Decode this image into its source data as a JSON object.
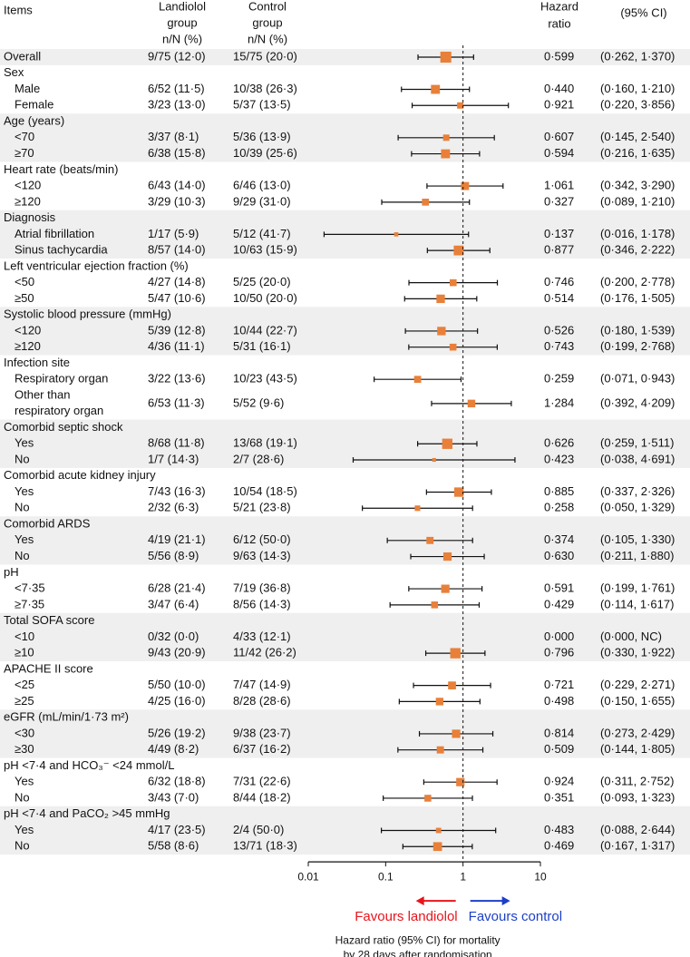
{
  "chart_data": {
    "type": "forest",
    "headers": {
      "items": "Items",
      "landiolol": [
        "Landiolol",
        "group",
        "n/N (%)"
      ],
      "control": [
        "Control",
        "group",
        "n/N (%)"
      ],
      "hr": [
        "Hazard",
        "ratio"
      ],
      "ci": "(95% CI)"
    },
    "overall": {
      "label": "Overall",
      "landiolol": "9/75 (12·0)",
      "control": "15/75 (20·0)",
      "hr": 0.599,
      "hr_label": "0·599",
      "ci": [
        0.262,
        1.37
      ],
      "ci_label": "(0·262, 1·370)"
    },
    "subgroups": [
      {
        "label": "Sex",
        "rows": [
          {
            "label": "Male",
            "landiolol": "6/52 (11·5)",
            "control": "10/38 (26·3)",
            "hr": 0.44,
            "hr_label": "0·440",
            "ci": [
              0.16,
              1.21
            ],
            "ci_label": "(0·160, 1·210)"
          },
          {
            "label": "Female",
            "landiolol": "3/23 (13·0)",
            "control": "5/37 (13·5)",
            "hr": 0.921,
            "hr_label": "0·921",
            "ci": [
              0.22,
              3.856
            ],
            "ci_label": "(0·220, 3·856)"
          }
        ]
      },
      {
        "label": "Age (years)",
        "rows": [
          {
            "label": "<70",
            "landiolol": "3/37 (8·1)",
            "control": "5/36 (13·9)",
            "hr": 0.607,
            "hr_label": "0·607",
            "ci": [
              0.145,
              2.54
            ],
            "ci_label": "(0·145, 2·540)"
          },
          {
            "label": "≥70",
            "landiolol": "6/38 (15·8)",
            "control": "10/39 (25·6)",
            "hr": 0.594,
            "hr_label": "0·594",
            "ci": [
              0.216,
              1.635
            ],
            "ci_label": "(0·216, 1·635)"
          }
        ]
      },
      {
        "label": "Heart rate (beats/min)",
        "rows": [
          {
            "label": "<120",
            "landiolol": "6/43 (14·0)",
            "control": "6/46 (13·0)",
            "hr": 1.061,
            "hr_label": "1·061",
            "ci": [
              0.342,
              3.29
            ],
            "ci_label": "(0·342, 3·290)"
          },
          {
            "label": "≥120",
            "landiolol": "3/29 (10·3)",
            "control": "9/29 (31·0)",
            "hr": 0.327,
            "hr_label": "0·327",
            "ci": [
              0.089,
              1.21
            ],
            "ci_label": "(0·089, 1·210)"
          }
        ]
      },
      {
        "label": "Diagnosis",
        "rows": [
          {
            "label": "Atrial fibrillation",
            "landiolol": "1/17 (5·9)",
            "control": "5/12 (41·7)",
            "hr": 0.137,
            "hr_label": "0·137",
            "ci": [
              0.016,
              1.178
            ],
            "ci_label": "(0·016, 1·178)"
          },
          {
            "label": "Sinus tachycardia",
            "landiolol": "8/57 (14·0)",
            "control": "10/63 (15·9)",
            "hr": 0.877,
            "hr_label": "0·877",
            "ci": [
              0.346,
              2.222
            ],
            "ci_label": "(0·346, 2·222)"
          }
        ]
      },
      {
        "label": "Left ventricular ejection fraction (%)",
        "rows": [
          {
            "label": "<50",
            "landiolol": "4/27 (14·8)",
            "control": "5/25 (20·0)",
            "hr": 0.746,
            "hr_label": "0·746",
            "ci": [
              0.2,
              2.778
            ],
            "ci_label": "(0·200, 2·778)"
          },
          {
            "label": "≥50",
            "landiolol": "5/47 (10·6)",
            "control": "10/50 (20·0)",
            "hr": 0.514,
            "hr_label": "0·514",
            "ci": [
              0.176,
              1.505
            ],
            "ci_label": "(0·176, 1·505)"
          }
        ]
      },
      {
        "label": "Systolic blood pressure (mmHg)",
        "rows": [
          {
            "label": "<120",
            "landiolol": "5/39 (12·8)",
            "control": "10/44 (22·7)",
            "hr": 0.526,
            "hr_label": "0·526",
            "ci": [
              0.18,
              1.539
            ],
            "ci_label": "(0·180, 1·539)"
          },
          {
            "label": "≥120",
            "landiolol": "4/36 (11·1)",
            "control": "5/31 (16·1)",
            "hr": 0.743,
            "hr_label": "0·743",
            "ci": [
              0.199,
              2.768
            ],
            "ci_label": "(0·199, 2·768)"
          }
        ]
      },
      {
        "label": "Infection site",
        "rows": [
          {
            "label": [
              "Respiratory organ"
            ],
            "landiolol": "3/22 (13·6)",
            "control": "10/23 (43·5)",
            "hr": 0.259,
            "hr_label": "0·259",
            "ci": [
              0.071,
              0.943
            ],
            "ci_label": "(0·071, 0·943)"
          },
          {
            "label": [
              "Other than",
              "respiratory organ"
            ],
            "landiolol": "6/53 (11·3)",
            "control": "5/52 (9·6)",
            "hr": 1.284,
            "hr_label": "1·284",
            "ci": [
              0.392,
              4.209
            ],
            "ci_label": "(0·392, 4·209)"
          }
        ]
      },
      {
        "label": "Comorbid septic shock",
        "rows": [
          {
            "label": "Yes",
            "landiolol": "8/68 (11·8)",
            "control": "13/68 (19·1)",
            "hr": 0.626,
            "hr_label": "0·626",
            "ci": [
              0.259,
              1.511
            ],
            "ci_label": "(0·259, 1·511)"
          },
          {
            "label": "No",
            "landiolol": "1/7 (14·3)",
            "control": "2/7 (28·6)",
            "hr": 0.423,
            "hr_label": "0·423",
            "ci": [
              0.038,
              4.691
            ],
            "ci_label": "(0·038, 4·691)"
          }
        ]
      },
      {
        "label": "Comorbid acute kidney injury",
        "rows": [
          {
            "label": "Yes",
            "landiolol": "7/43 (16·3)",
            "control": "10/54 (18·5)",
            "hr": 0.885,
            "hr_label": "0·885",
            "ci": [
              0.337,
              2.326
            ],
            "ci_label": "(0·337, 2·326)"
          },
          {
            "label": "No",
            "landiolol": "2/32 (6·3)",
            "control": "5/21 (23·8)",
            "hr": 0.258,
            "hr_label": "0·258",
            "ci": [
              0.05,
              1.329
            ],
            "ci_label": "(0·050, 1·329)"
          }
        ]
      },
      {
        "label": "Comorbid ARDS",
        "rows": [
          {
            "label": "Yes",
            "landiolol": "4/19 (21·1)",
            "control": "6/12 (50·0)",
            "hr": 0.374,
            "hr_label": "0·374",
            "ci": [
              0.105,
              1.33
            ],
            "ci_label": "(0·105, 1·330)"
          },
          {
            "label": "No",
            "landiolol": "5/56 (8·9)",
            "control": "9/63 (14·3)",
            "hr": 0.63,
            "hr_label": "0·630",
            "ci": [
              0.211,
              1.88
            ],
            "ci_label": "(0·211, 1·880)"
          }
        ]
      },
      {
        "label": "pH",
        "rows": [
          {
            "label": "<7·35",
            "landiolol": "6/28 (21·4)",
            "control": "7/19 (36·8)",
            "hr": 0.591,
            "hr_label": "0·591",
            "ci": [
              0.199,
              1.761
            ],
            "ci_label": "(0·199, 1·761)"
          },
          {
            "label": "≥7·35",
            "landiolol": "3/47 (6·4)",
            "control": "8/56 (14·3)",
            "hr": 0.429,
            "hr_label": "0·429",
            "ci": [
              0.114,
              1.617
            ],
            "ci_label": "(0·114, 1·617)"
          }
        ]
      },
      {
        "label": "Total SOFA score",
        "rows": [
          {
            "label": "<10",
            "landiolol": "0/32 (0·0)",
            "control": "4/33 (12·1)",
            "hr": 0,
            "hr_label": "0·000",
            "ci": [
              0,
              null
            ],
            "ci_label": "(0·000, NC)"
          },
          {
            "label": "≥10",
            "landiolol": "9/43 (20·9)",
            "control": "11/42 (26·2)",
            "hr": 0.796,
            "hr_label": "0·796",
            "ci": [
              0.33,
              1.922
            ],
            "ci_label": "(0·330, 1·922)"
          }
        ]
      },
      {
        "label": "APACHE II score",
        "rows": [
          {
            "label": "<25",
            "landiolol": "5/50 (10·0)",
            "control": "7/47 (14·9)",
            "hr": 0.721,
            "hr_label": "0·721",
            "ci": [
              0.229,
              2.271
            ],
            "ci_label": "(0·229, 2·271)"
          },
          {
            "label": "≥25",
            "landiolol": "4/25 (16·0)",
            "control": "8/28 (28·6)",
            "hr": 0.498,
            "hr_label": "0·498",
            "ci": [
              0.15,
              1.655
            ],
            "ci_label": "(0·150, 1·655)"
          }
        ]
      },
      {
        "label": "eGFR (mL/min/1·73 m²)",
        "rows": [
          {
            "label": "<30",
            "landiolol": "5/26 (19·2)",
            "control": "9/38 (23·7)",
            "hr": 0.814,
            "hr_label": "0·814",
            "ci": [
              0.273,
              2.429
            ],
            "ci_label": "(0·273, 2·429)"
          },
          {
            "label": "≥30",
            "landiolol": "4/49 (8·2)",
            "control": "6/37 (16·2)",
            "hr": 0.509,
            "hr_label": "0·509",
            "ci": [
              0.144,
              1.805
            ],
            "ci_label": "(0·144, 1·805)"
          }
        ]
      },
      {
        "label": "pH <7·4 and HCO₃⁻ <24 mmol/L",
        "rows": [
          {
            "label": "Yes",
            "landiolol": "6/32 (18·8)",
            "control": "7/31 (22·6)",
            "hr": 0.924,
            "hr_label": "0·924",
            "ci": [
              0.311,
              2.752
            ],
            "ci_label": "(0·311, 2·752)"
          },
          {
            "label": "No",
            "landiolol": "3/43 (7·0)",
            "control": "8/44 (18·2)",
            "hr": 0.351,
            "hr_label": "0·351",
            "ci": [
              0.093,
              1.323
            ],
            "ci_label": "(0·093, 1·323)"
          }
        ]
      },
      {
        "label": "pH <7·4 and PaCO₂ >45 mmHg",
        "rows": [
          {
            "label": "Yes",
            "landiolol": "4/17 (23·5)",
            "control": "2/4 (50·0)",
            "hr": 0.483,
            "hr_label": "0·483",
            "ci": [
              0.088,
              2.644
            ],
            "ci_label": "(0·088, 2·644)"
          },
          {
            "label": "No",
            "landiolol": "5/58 (8·6)",
            "control": "13/71 (18·3)",
            "hr": 0.469,
            "hr_label": "0·469",
            "ci": [
              0.167,
              1.317
            ],
            "ci_label": "(0·167, 1·317)"
          }
        ]
      }
    ],
    "xlim": [
      0.01,
      10
    ],
    "xticks": [
      0.01,
      0.1,
      1,
      10
    ],
    "xlog": true,
    "reference_line": 1,
    "marker_color": "#e8803a",
    "favours_left": "Favours landiolol",
    "favours_left_color": "#e8141c",
    "favours_right": "Favours control",
    "favours_right_color": "#1c3fc8",
    "xlabel": [
      "Hazard ratio (95% CI) for mortality",
      "by 28 days after randomisation"
    ]
  }
}
